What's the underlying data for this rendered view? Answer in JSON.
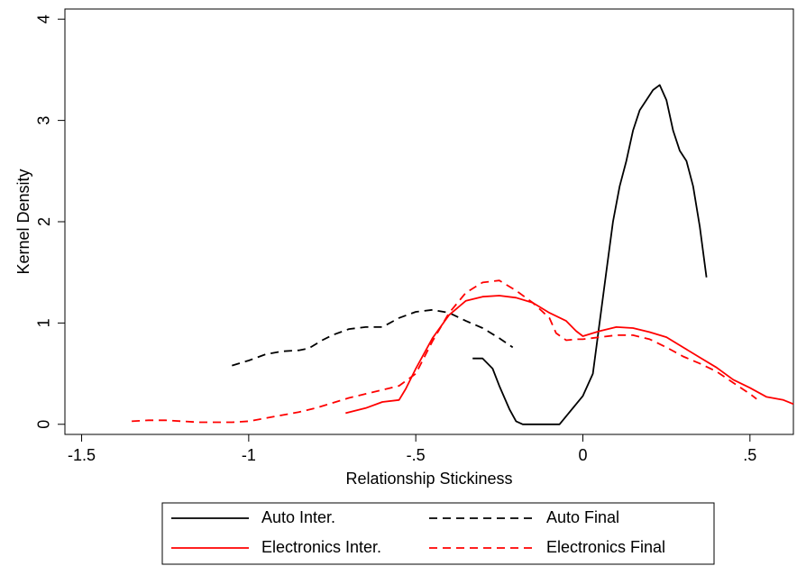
{
  "chart_data": {
    "type": "line",
    "xlabel": "Relationship Stickiness",
    "ylabel": "Kernel Density",
    "xlim": [
      -1.55,
      0.63
    ],
    "ylim": [
      -0.1,
      4.1
    ],
    "xticks": [
      -1.5,
      -1,
      -0.5,
      0,
      0.5
    ],
    "xtick_labels": [
      "-1.5",
      "-1",
      "-.5",
      "0",
      ".5"
    ],
    "yticks": [
      0,
      1,
      2,
      3,
      4
    ],
    "ytick_labels": [
      "0",
      "1",
      "2",
      "3",
      "4"
    ],
    "grid": false,
    "legend_position": "bottom",
    "series": [
      {
        "name": "Auto Inter.",
        "color": "#000000",
        "dash": "solid",
        "x": [
          -0.33,
          -0.3,
          -0.27,
          -0.25,
          -0.22,
          -0.2,
          -0.18,
          -0.15,
          -0.1,
          -0.07,
          -0.05,
          -0.02,
          0.0,
          0.03,
          0.05,
          0.07,
          0.09,
          0.11,
          0.13,
          0.15,
          0.17,
          0.19,
          0.21,
          0.23,
          0.25,
          0.27,
          0.29,
          0.31,
          0.33,
          0.35,
          0.37
        ],
        "y": [
          0.65,
          0.65,
          0.55,
          0.38,
          0.15,
          0.03,
          0.0,
          0.0,
          0.0,
          0.0,
          0.08,
          0.2,
          0.28,
          0.5,
          1.0,
          1.5,
          2.0,
          2.35,
          2.6,
          2.9,
          3.1,
          3.2,
          3.3,
          3.35,
          3.2,
          2.9,
          2.7,
          2.6,
          2.35,
          1.95,
          1.45
        ]
      },
      {
        "name": "Auto Final",
        "color": "#000000",
        "dash": "dashed",
        "x": [
          -1.05,
          -1.0,
          -0.95,
          -0.9,
          -0.85,
          -0.82,
          -0.78,
          -0.75,
          -0.7,
          -0.65,
          -0.6,
          -0.55,
          -0.5,
          -0.45,
          -0.4,
          -0.35,
          -0.3,
          -0.25,
          -0.21
        ],
        "y": [
          0.58,
          0.63,
          0.69,
          0.72,
          0.73,
          0.75,
          0.83,
          0.88,
          0.94,
          0.96,
          0.96,
          1.05,
          1.11,
          1.13,
          1.1,
          1.02,
          0.95,
          0.85,
          0.76
        ]
      },
      {
        "name": "Electronics Inter.",
        "color": "#ff0000",
        "dash": "solid",
        "x": [
          -0.71,
          -0.65,
          -0.6,
          -0.55,
          -0.53,
          -0.5,
          -0.45,
          -0.4,
          -0.35,
          -0.3,
          -0.25,
          -0.2,
          -0.15,
          -0.1,
          -0.05,
          -0.02,
          0.0,
          0.05,
          0.1,
          0.15,
          0.2,
          0.25,
          0.3,
          0.35,
          0.4,
          0.45,
          0.5,
          0.55,
          0.6,
          0.63
        ],
        "y": [
          0.11,
          0.16,
          0.22,
          0.24,
          0.35,
          0.55,
          0.85,
          1.08,
          1.22,
          1.26,
          1.27,
          1.25,
          1.2,
          1.1,
          1.02,
          0.92,
          0.87,
          0.92,
          0.96,
          0.95,
          0.91,
          0.86,
          0.76,
          0.66,
          0.56,
          0.44,
          0.36,
          0.27,
          0.24,
          0.2
        ]
      },
      {
        "name": "Electronics Final",
        "color": "#ff0000",
        "dash": "dashed",
        "x": [
          -1.35,
          -1.3,
          -1.25,
          -1.2,
          -1.15,
          -1.1,
          -1.05,
          -1.0,
          -0.95,
          -0.9,
          -0.85,
          -0.8,
          -0.75,
          -0.7,
          -0.65,
          -0.6,
          -0.55,
          -0.5,
          -0.45,
          -0.4,
          -0.35,
          -0.3,
          -0.25,
          -0.2,
          -0.15,
          -0.1,
          -0.08,
          -0.05,
          -0.02,
          0.0,
          0.05,
          0.1,
          0.15,
          0.2,
          0.25,
          0.3,
          0.35,
          0.4,
          0.45,
          0.5,
          0.52
        ],
        "y": [
          0.03,
          0.04,
          0.04,
          0.03,
          0.02,
          0.02,
          0.02,
          0.03,
          0.06,
          0.09,
          0.12,
          0.16,
          0.21,
          0.26,
          0.3,
          0.34,
          0.38,
          0.5,
          0.82,
          1.1,
          1.3,
          1.4,
          1.42,
          1.32,
          1.2,
          1.05,
          0.9,
          0.83,
          0.84,
          0.84,
          0.86,
          0.88,
          0.88,
          0.84,
          0.76,
          0.67,
          0.6,
          0.52,
          0.41,
          0.3,
          0.25
        ]
      }
    ]
  }
}
